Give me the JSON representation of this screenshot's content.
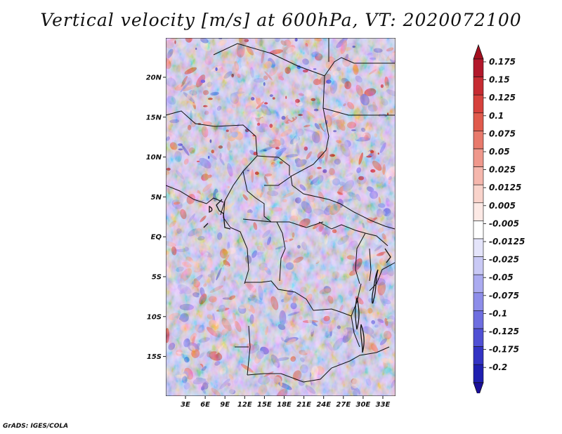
{
  "title": "Vertical velocity [m/s] at 600hPa, VT: 2020072100",
  "footer": "GrADS: IGES/COLA",
  "map": {
    "lat_labels": [
      "20N",
      "15N",
      "10N",
      "5N",
      "EQ",
      "5S",
      "10S",
      "15S"
    ],
    "lon_labels": [
      "3E",
      "6E",
      "9E",
      "12E",
      "15E",
      "18E",
      "21E",
      "24E",
      "27E",
      "30E",
      "33E"
    ]
  },
  "colorbar": {
    "levels": [
      {
        "label": "0.175",
        "color": "#b2182b"
      },
      {
        "label": "0.15",
        "color": "#c62b32"
      },
      {
        "label": "0.125",
        "color": "#d6413c"
      },
      {
        "label": "0.1",
        "color": "#e05a4c"
      },
      {
        "label": "0.075",
        "color": "#e87a6c"
      },
      {
        "label": "0.05",
        "color": "#ef988c"
      },
      {
        "label": "0.025",
        "color": "#f5b7ad"
      },
      {
        "label": "0.0125",
        "color": "#f9d3cb"
      },
      {
        "label": "0.005",
        "color": "#fce9e5"
      },
      {
        "label": "-0.005",
        "color": "#ffffff"
      },
      {
        "label": "-0.0125",
        "color": "#e4e4fa"
      },
      {
        "label": "-0.025",
        "color": "#c9c9f5"
      },
      {
        "label": "-0.05",
        "color": "#ababf0"
      },
      {
        "label": "-0.075",
        "color": "#8d8de9"
      },
      {
        "label": "-0.1",
        "color": "#6e6ee0"
      },
      {
        "label": "-0.125",
        "color": "#5050d4"
      },
      {
        "label": "-0.175",
        "color": "#3333c4"
      },
      {
        "label": "-0.2",
        "color": "#1f1fb0"
      }
    ],
    "top_cap_color": "#a50f1f",
    "bottom_cap_color": "#1a0f99"
  }
}
